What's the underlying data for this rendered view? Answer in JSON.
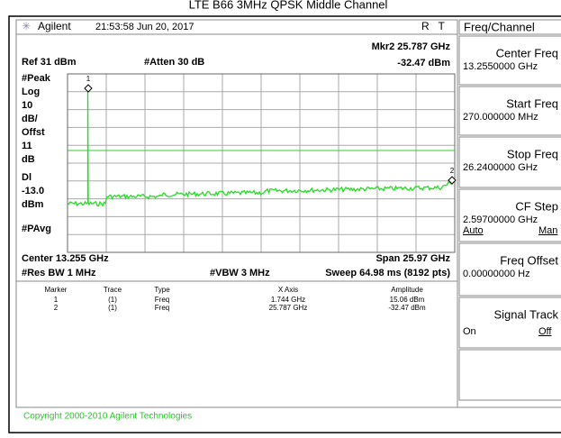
{
  "title": "LTE B66 3MHz QPSK Middle Channel",
  "header": {
    "brand": "Agilent",
    "datetime": "21:53:58  Jun 20, 2017",
    "status": "R   T"
  },
  "display": {
    "ref": "Ref 31 dBm",
    "atten": "#Atten 30 dB",
    "marker_freq": "Mkr2  25.787 GHz",
    "marker_amp": "-32.47 dBm",
    "left_labels": [
      "#Peak",
      "Log",
      "10",
      "dB/",
      "Offst",
      "11",
      "dB",
      "Dl",
      "-13.0",
      "dBm",
      "#PAvg"
    ],
    "marker_ids": [
      "1",
      "2"
    ],
    "center": "Center 13.255 GHz",
    "span": "Span 25.97 GHz",
    "rbw": "#Res BW 1 MHz",
    "vbw": "#VBW 3 MHz",
    "sweep": "Sweep 64.98 ms (8192 pts)"
  },
  "table": {
    "headers": [
      "Marker",
      "Trace",
      "Type",
      "X Axis",
      "Amplitude"
    ],
    "rows": [
      [
        "1",
        "(1)",
        "Freq",
        "1.744 GHz",
        "15.06 dBm"
      ],
      [
        "2",
        "(1)",
        "Freq",
        "25.787 GHz",
        "-32.47 dBm"
      ]
    ]
  },
  "menu": {
    "title": "Freq/Channel",
    "keys": [
      {
        "label": "Center Freq",
        "value": "13.2550000 GHz"
      },
      {
        "label": "Start Freq",
        "value": "270.000000 MHz"
      },
      {
        "label": "Stop Freq",
        "value": "26.2400000 GHz"
      },
      {
        "label": "CF Step",
        "value": "2.59700000 GHz",
        "opt1": "Auto",
        "opt2": "Man"
      },
      {
        "label": "Freq Offset",
        "value": "0.00000000  Hz"
      },
      {
        "label": "Signal Track",
        "opt1": "On",
        "opt2": "Off"
      }
    ]
  },
  "copyright": "Copyright 2000-2010 Agilent Technologies"
}
